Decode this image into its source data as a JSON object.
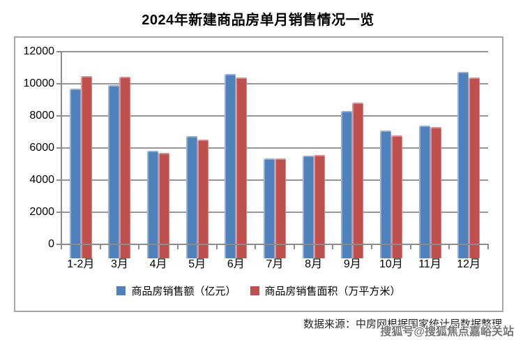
{
  "page": {
    "title": "2024年新建商品房单月销售情况一览"
  },
  "source_note": "数据来源：中房网根据国家统计局数据整理",
  "watermark": "搜狐号@搜狐焦点嘉峪关站",
  "colors": {
    "series_sales_amount": "#4F81BD",
    "series_sales_area": "#C0504D",
    "gridline": "#969696",
    "axis": "#8c8c8c",
    "frame_border": "#a6a6a6",
    "watermark_text": "#757575"
  },
  "chart_data": {
    "type": "bar",
    "title": "2024年新建商品房单月销售情况一览",
    "categories": [
      "1-2月",
      "3月",
      "4月",
      "5月",
      "6月",
      "7月",
      "8月",
      "9月",
      "10月",
      "11月",
      "12月"
    ],
    "series": [
      {
        "name": "商品房销售额（亿元）",
        "color": "#4F81BD",
        "values": [
          10566,
          10789,
          6712,
          7598,
          11468,
          6197,
          6393,
          9157,
          7975,
          8270,
          11625
        ]
      },
      {
        "name": "商品房销售面积（万平方米）",
        "color": "#C0504D",
        "values": [
          11369,
          11299,
          6584,
          7390,
          11274,
          6233,
          6453,
          9682,
          7646,
          8188,
          11267
        ]
      }
    ],
    "xlabel": "",
    "ylabel": "",
    "ylim": [
      0,
      12000
    ],
    "yticks": [
      0,
      2000,
      4000,
      6000,
      8000,
      10000,
      12000
    ],
    "grid": true,
    "legend_position": "bottom"
  }
}
